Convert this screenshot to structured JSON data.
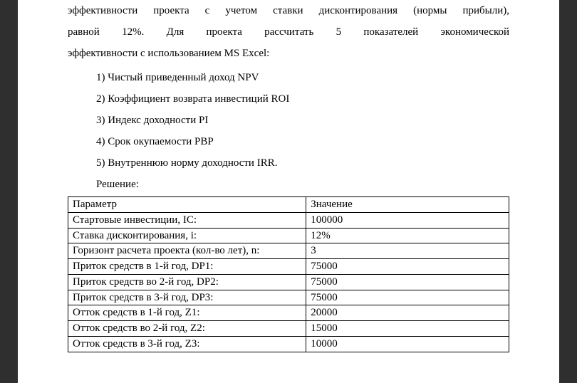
{
  "paragraph": {
    "line1": "эффективности проекта с учетом ставки дисконтирования (нормы прибыли),",
    "line2": "равной 12%. Для проекта рассчитать 5 показателей экономической",
    "line3": "эффективности с использованием MS Excel:"
  },
  "list_items": [
    "1) Чистый приведенный доход NPV",
    "2) Коэффициент возврата инвестиций ROI",
    "3) Индекс доходности PI",
    "4) Срок окупаемости PBP",
    "5) Внутреннюю норму доходности IRR."
  ],
  "solution_label": "Решение:",
  "table": {
    "columns": [
      "Параметр",
      "Значение"
    ],
    "rows": [
      [
        "Стартовые инвестиции, IC:",
        "100000"
      ],
      [
        "Ставка дисконтирования, i:",
        "12%"
      ],
      [
        "Горизонт расчета проекта (кол-во лет), n:",
        "3"
      ],
      [
        "Приток средств в 1-й год, DP1:",
        "75000"
      ],
      [
        "Приток средств во 2-й год, DP2:",
        "75000"
      ],
      [
        "Приток средств в 3-й год, DP3:",
        "75000"
      ],
      [
        "Отток средств в 1-й год, Z1:",
        "20000"
      ],
      [
        "Отток средств во 2-й год, Z2:",
        "15000"
      ],
      [
        "Отток средств в 3-й год, Z3:",
        "10000"
      ]
    ],
    "col_widths": [
      "54%",
      "46%"
    ],
    "border_color": "#000000",
    "background_color": "#ffffff",
    "text_color": "#000000",
    "font_size_pt": 11
  },
  "page_style": {
    "background_color": "#ffffff",
    "outer_background_color": "#2f2f2f",
    "text_color": "#000000",
    "font_family": "Times New Roman",
    "body_font_size_pt": 12,
    "line_spacing": 2.0
  }
}
